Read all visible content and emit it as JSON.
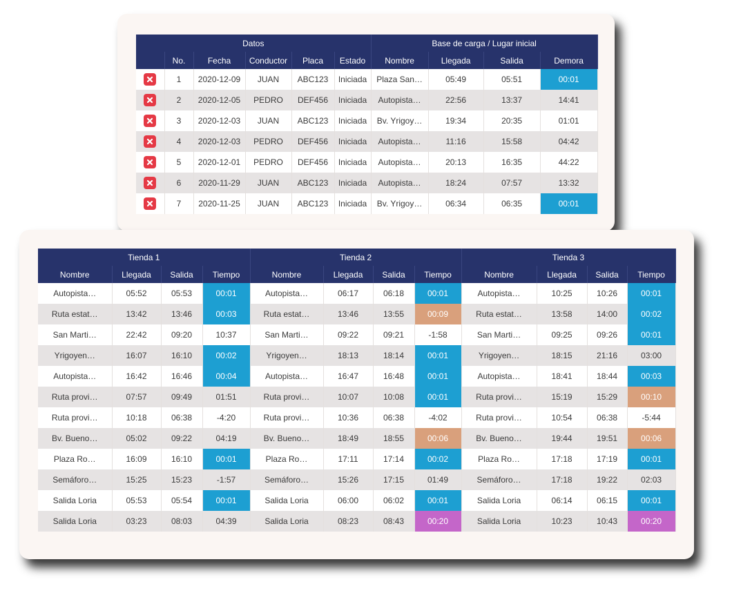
{
  "trips_table": {
    "group_headers": [
      "Datos",
      "Base de carga / Lugar inicial"
    ],
    "headers": [
      "No.",
      "Fecha",
      "Conductor",
      "Placa",
      "Estado",
      "Nombre",
      "Llegada",
      "Salida",
      "Demora"
    ],
    "rows": [
      [
        "1",
        "2020-12-09",
        "JUAN",
        "ABC123",
        "Iniciada",
        "Plaza San…",
        "05:49",
        "05:51",
        "00:01"
      ],
      [
        "2",
        "2020-12-05",
        "PEDRO",
        "DEF456",
        "Iniciada",
        "Autopista…",
        "22:56",
        "13:37",
        "14:41"
      ],
      [
        "3",
        "2020-12-03",
        "JUAN",
        "ABC123",
        "Iniciada",
        "Bv. Yrigoy…",
        "19:34",
        "20:35",
        "01:01"
      ],
      [
        "4",
        "2020-12-03",
        "PEDRO",
        "DEF456",
        "Iniciada",
        "Autopista…",
        "11:16",
        "15:58",
        "04:42"
      ],
      [
        "5",
        "2020-12-01",
        "PEDRO",
        "DEF456",
        "Iniciada",
        "Autopista…",
        "20:13",
        "16:35",
        "44:22"
      ],
      [
        "6",
        "2020-11-29",
        "JUAN",
        "ABC123",
        "Iniciada",
        "Autopista…",
        "18:24",
        "07:57",
        "13:32"
      ],
      [
        "7",
        "2020-11-25",
        "JUAN",
        "ABC123",
        "Iniciada",
        "Bv. Yrigoy…",
        "06:34",
        "06:35",
        "00:01"
      ]
    ],
    "demora_colors": [
      "#1d9fd2",
      null,
      null,
      null,
      null,
      null,
      "#1d9fd2"
    ]
  },
  "stores_table": {
    "group_headers": [
      "Tienda 1",
      "Tienda 2",
      "Tienda 3"
    ],
    "headers": [
      "Nombre",
      "Llegada",
      "Salida",
      "Tiempo",
      "Nombre",
      "Llegada",
      "Salida",
      "Tiempo",
      "Nombre",
      "Llegada",
      "Salida",
      "Tiempo"
    ],
    "rows": [
      [
        "Autopista…",
        "05:52",
        "05:53",
        "00:01",
        "Autopista…",
        "06:17",
        "06:18",
        "00:01",
        "Autopista…",
        "10:25",
        "10:26",
        "00:01"
      ],
      [
        "Ruta estat…",
        "13:42",
        "13:46",
        "00:03",
        "Ruta estat…",
        "13:46",
        "13:55",
        "00:09",
        "Ruta estat…",
        "13:58",
        "14:00",
        "00:02"
      ],
      [
        "San Marti…",
        "22:42",
        "09:20",
        "10:37",
        "San Marti…",
        "09:22",
        "09:21",
        "-1:58",
        "San Marti…",
        "09:25",
        "09:26",
        "00:01"
      ],
      [
        "Yrigoyen…",
        "16:07",
        "16:10",
        "00:02",
        "Yrigoyen…",
        "18:13",
        "18:14",
        "00:01",
        "Yrigoyen…",
        "18:15",
        "21:16",
        "03:00"
      ],
      [
        "Autopista…",
        "16:42",
        "16:46",
        "00:04",
        "Autopista…",
        "16:47",
        "16:48",
        "00:01",
        "Autopista…",
        "18:41",
        "18:44",
        "00:03"
      ],
      [
        "Ruta provi…",
        "07:57",
        "09:49",
        "01:51",
        "Ruta provi…",
        "10:07",
        "10:08",
        "00:01",
        "Ruta provi…",
        "15:19",
        "15:29",
        "00:10"
      ],
      [
        "Ruta provi…",
        "10:18",
        "06:38",
        "-4:20",
        "Ruta provi…",
        "10:36",
        "06:38",
        "-4:02",
        "Ruta provi…",
        "10:54",
        "06:38",
        "-5:44"
      ],
      [
        "Bv. Bueno…",
        "05:02",
        "09:22",
        "04:19",
        "Bv. Bueno…",
        "18:49",
        "18:55",
        "00:06",
        "Bv. Bueno…",
        "19:44",
        "19:51",
        "00:06"
      ],
      [
        "Plaza Ro…",
        "16:09",
        "16:10",
        "00:01",
        "Plaza Ro…",
        "17:11",
        "17:14",
        "00:02",
        "Plaza Ro…",
        "17:18",
        "17:19",
        "00:01"
      ],
      [
        "Semáforo…",
        "15:25",
        "15:23",
        "-1:57",
        "Semáforo…",
        "15:26",
        "17:15",
        "01:49",
        "Semáforo…",
        "17:18",
        "19:22",
        "02:03"
      ],
      [
        "Salida Loria",
        "05:53",
        "05:54",
        "00:01",
        "Salida Loria",
        "06:00",
        "06:02",
        "00:01",
        "Salida Loria",
        "06:14",
        "06:15",
        "00:01"
      ],
      [
        "Salida Loria",
        "03:23",
        "08:03",
        "04:39",
        "Salida Loria",
        "08:23",
        "08:43",
        "00:20",
        "Salida Loria",
        "10:23",
        "10:43",
        "00:20"
      ]
    ],
    "tiempo_colors": [
      [
        "#1d9fd2",
        "#1d9fd2",
        "#1d9fd2"
      ],
      [
        "#1d9fd2",
        "#d9a07c",
        "#1d9fd2"
      ],
      [
        null,
        null,
        "#1d9fd2"
      ],
      [
        "#1d9fd2",
        "#1d9fd2",
        null
      ],
      [
        "#1d9fd2",
        "#1d9fd2",
        "#1d9fd2"
      ],
      [
        null,
        "#1d9fd2",
        "#d9a07c"
      ],
      [
        null,
        null,
        null
      ],
      [
        null,
        "#d9a07c",
        "#d9a07c"
      ],
      [
        "#1d9fd2",
        "#1d9fd2",
        "#1d9fd2"
      ],
      [
        null,
        null,
        null
      ],
      [
        "#1d9fd2",
        "#1d9fd2",
        "#1d9fd2"
      ],
      [
        null,
        "#c466c9",
        "#c466c9"
      ]
    ]
  }
}
